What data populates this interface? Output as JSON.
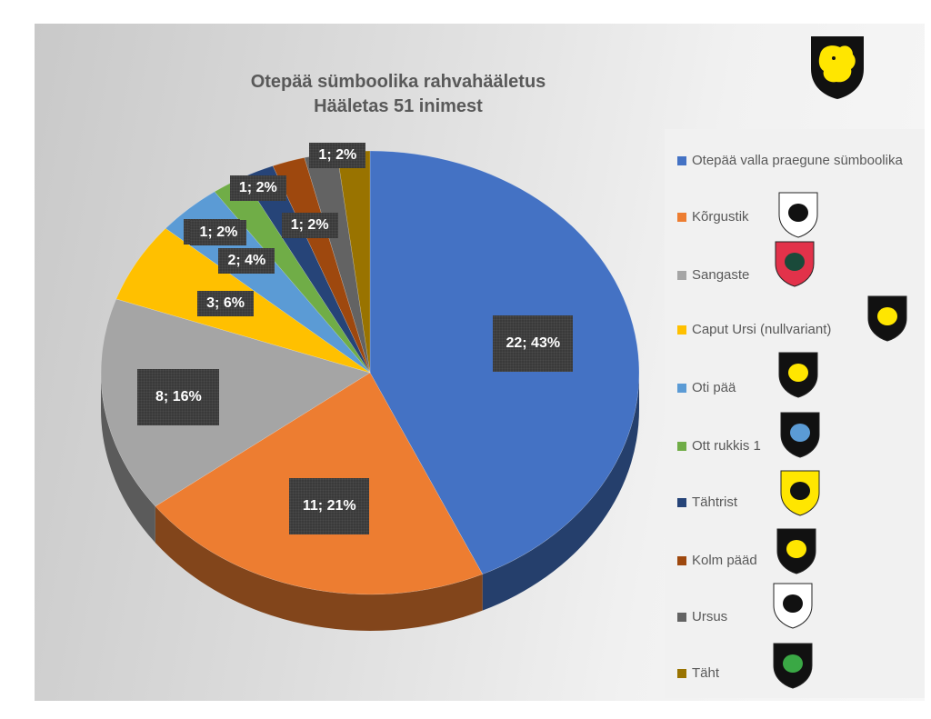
{
  "title": "Otepää sümboolika rahvahääletus",
  "subtitle": "Hääletas 51 inimest",
  "chart_data": {
    "type": "pie",
    "title": "Otepää sümboolika rahvahääletus",
    "subtitle": "Hääletas 51 inimest",
    "total": 51,
    "legend_position": "right",
    "three_d": true,
    "slices": [
      {
        "name": "Otepää valla praegune sümboolika",
        "value": 22,
        "percent": 43,
        "label": "22; 43%",
        "color": "#4472C4"
      },
      {
        "name": "Kõrgustik",
        "value": 11,
        "percent": 21,
        "label": "11; 21%",
        "color": "#ED7D31"
      },
      {
        "name": "Sangaste",
        "value": 8,
        "percent": 16,
        "label": "8; 16%",
        "color": "#A5A5A5"
      },
      {
        "name": "Caput Ursi (nullvariant)",
        "value": 3,
        "percent": 6,
        "label": "3; 6%",
        "color": "#FFC000"
      },
      {
        "name": "Oti pää",
        "value": 2,
        "percent": 4,
        "label": "2; 4%",
        "color": "#5B9BD5"
      },
      {
        "name": "Ott rukkis 1",
        "value": 1,
        "percent": 2,
        "label": "1; 2%",
        "color": "#70AD47"
      },
      {
        "name": "Tähtrist",
        "value": 1,
        "percent": 2,
        "label": "1; 2%",
        "color": "#264478"
      },
      {
        "name": "Kolm pääd",
        "value": 1,
        "percent": 2,
        "label": "1; 2%",
        "color": "#9E480E"
      },
      {
        "name": "Ursus",
        "value": 1,
        "percent": 2,
        "label": "1; 2%",
        "color": "#636363"
      },
      {
        "name": "Täht",
        "value": 1,
        "percent": 2,
        "label": "1; 2%",
        "color": "#997300"
      }
    ]
  }
}
